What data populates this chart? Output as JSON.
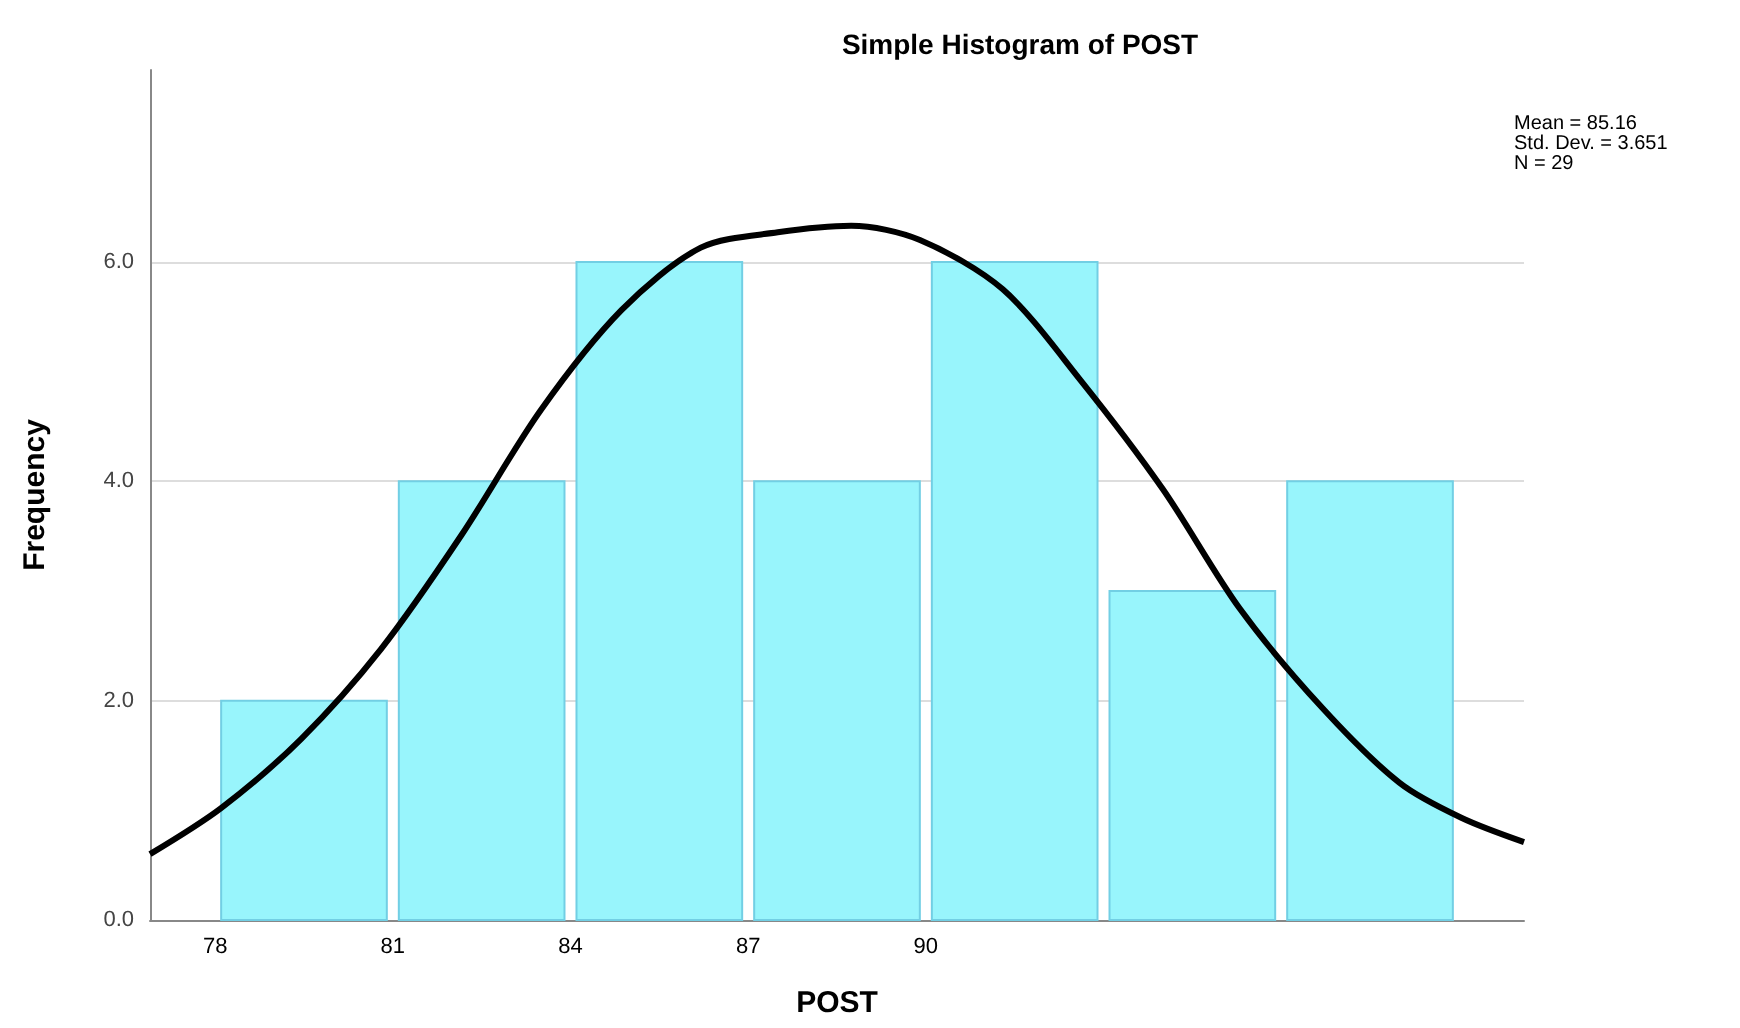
{
  "chart_data": {
    "type": "histogram",
    "title": "Simple Histogram of POST",
    "xlabel": "POST",
    "ylabel": "Frequency",
    "annotations": [
      "Mean = 85.16",
      "Std. Dev. = 3.651",
      "N = 29"
    ],
    "xlim": [
      76.9,
      100.1
    ],
    "xticks": [
      78,
      81,
      84,
      87,
      90
    ],
    "ylim": [
      0,
      7.75
    ],
    "yticks": [
      {
        "value": 0,
        "label": "0.0"
      },
      {
        "value": 2,
        "label": "2.0"
      },
      {
        "value": 4,
        "label": "4.0"
      },
      {
        "value": 6,
        "label": "6.0"
      }
    ],
    "grid": "y",
    "marker": "none",
    "series": [
      {
        "bins": [
          78,
          81,
          84,
          87,
          90,
          93,
          96,
          99
        ],
        "values": [
          2,
          4,
          6,
          4,
          6,
          3,
          4
        ],
        "color": "#98f5fc"
      },
      {
        "type": "line",
        "color": "#000000",
        "x": [
          76.9,
          78.1,
          79.45,
          80.8,
          82.16,
          83.5,
          84.86,
          86.2,
          87.5,
          88.74,
          89.9,
          91.3,
          92.6,
          94,
          95.3,
          96.7,
          98,
          99.05,
          100.1
        ],
        "values": [
          0.6,
          1.02,
          1.65,
          2.47,
          3.51,
          4.65,
          5.56,
          6.13,
          6.27,
          6.33,
          6.2,
          5.75,
          4.93,
          3.93,
          2.84,
          1.93,
          1.25,
          0.93,
          0.71
        ]
      }
    ]
  }
}
